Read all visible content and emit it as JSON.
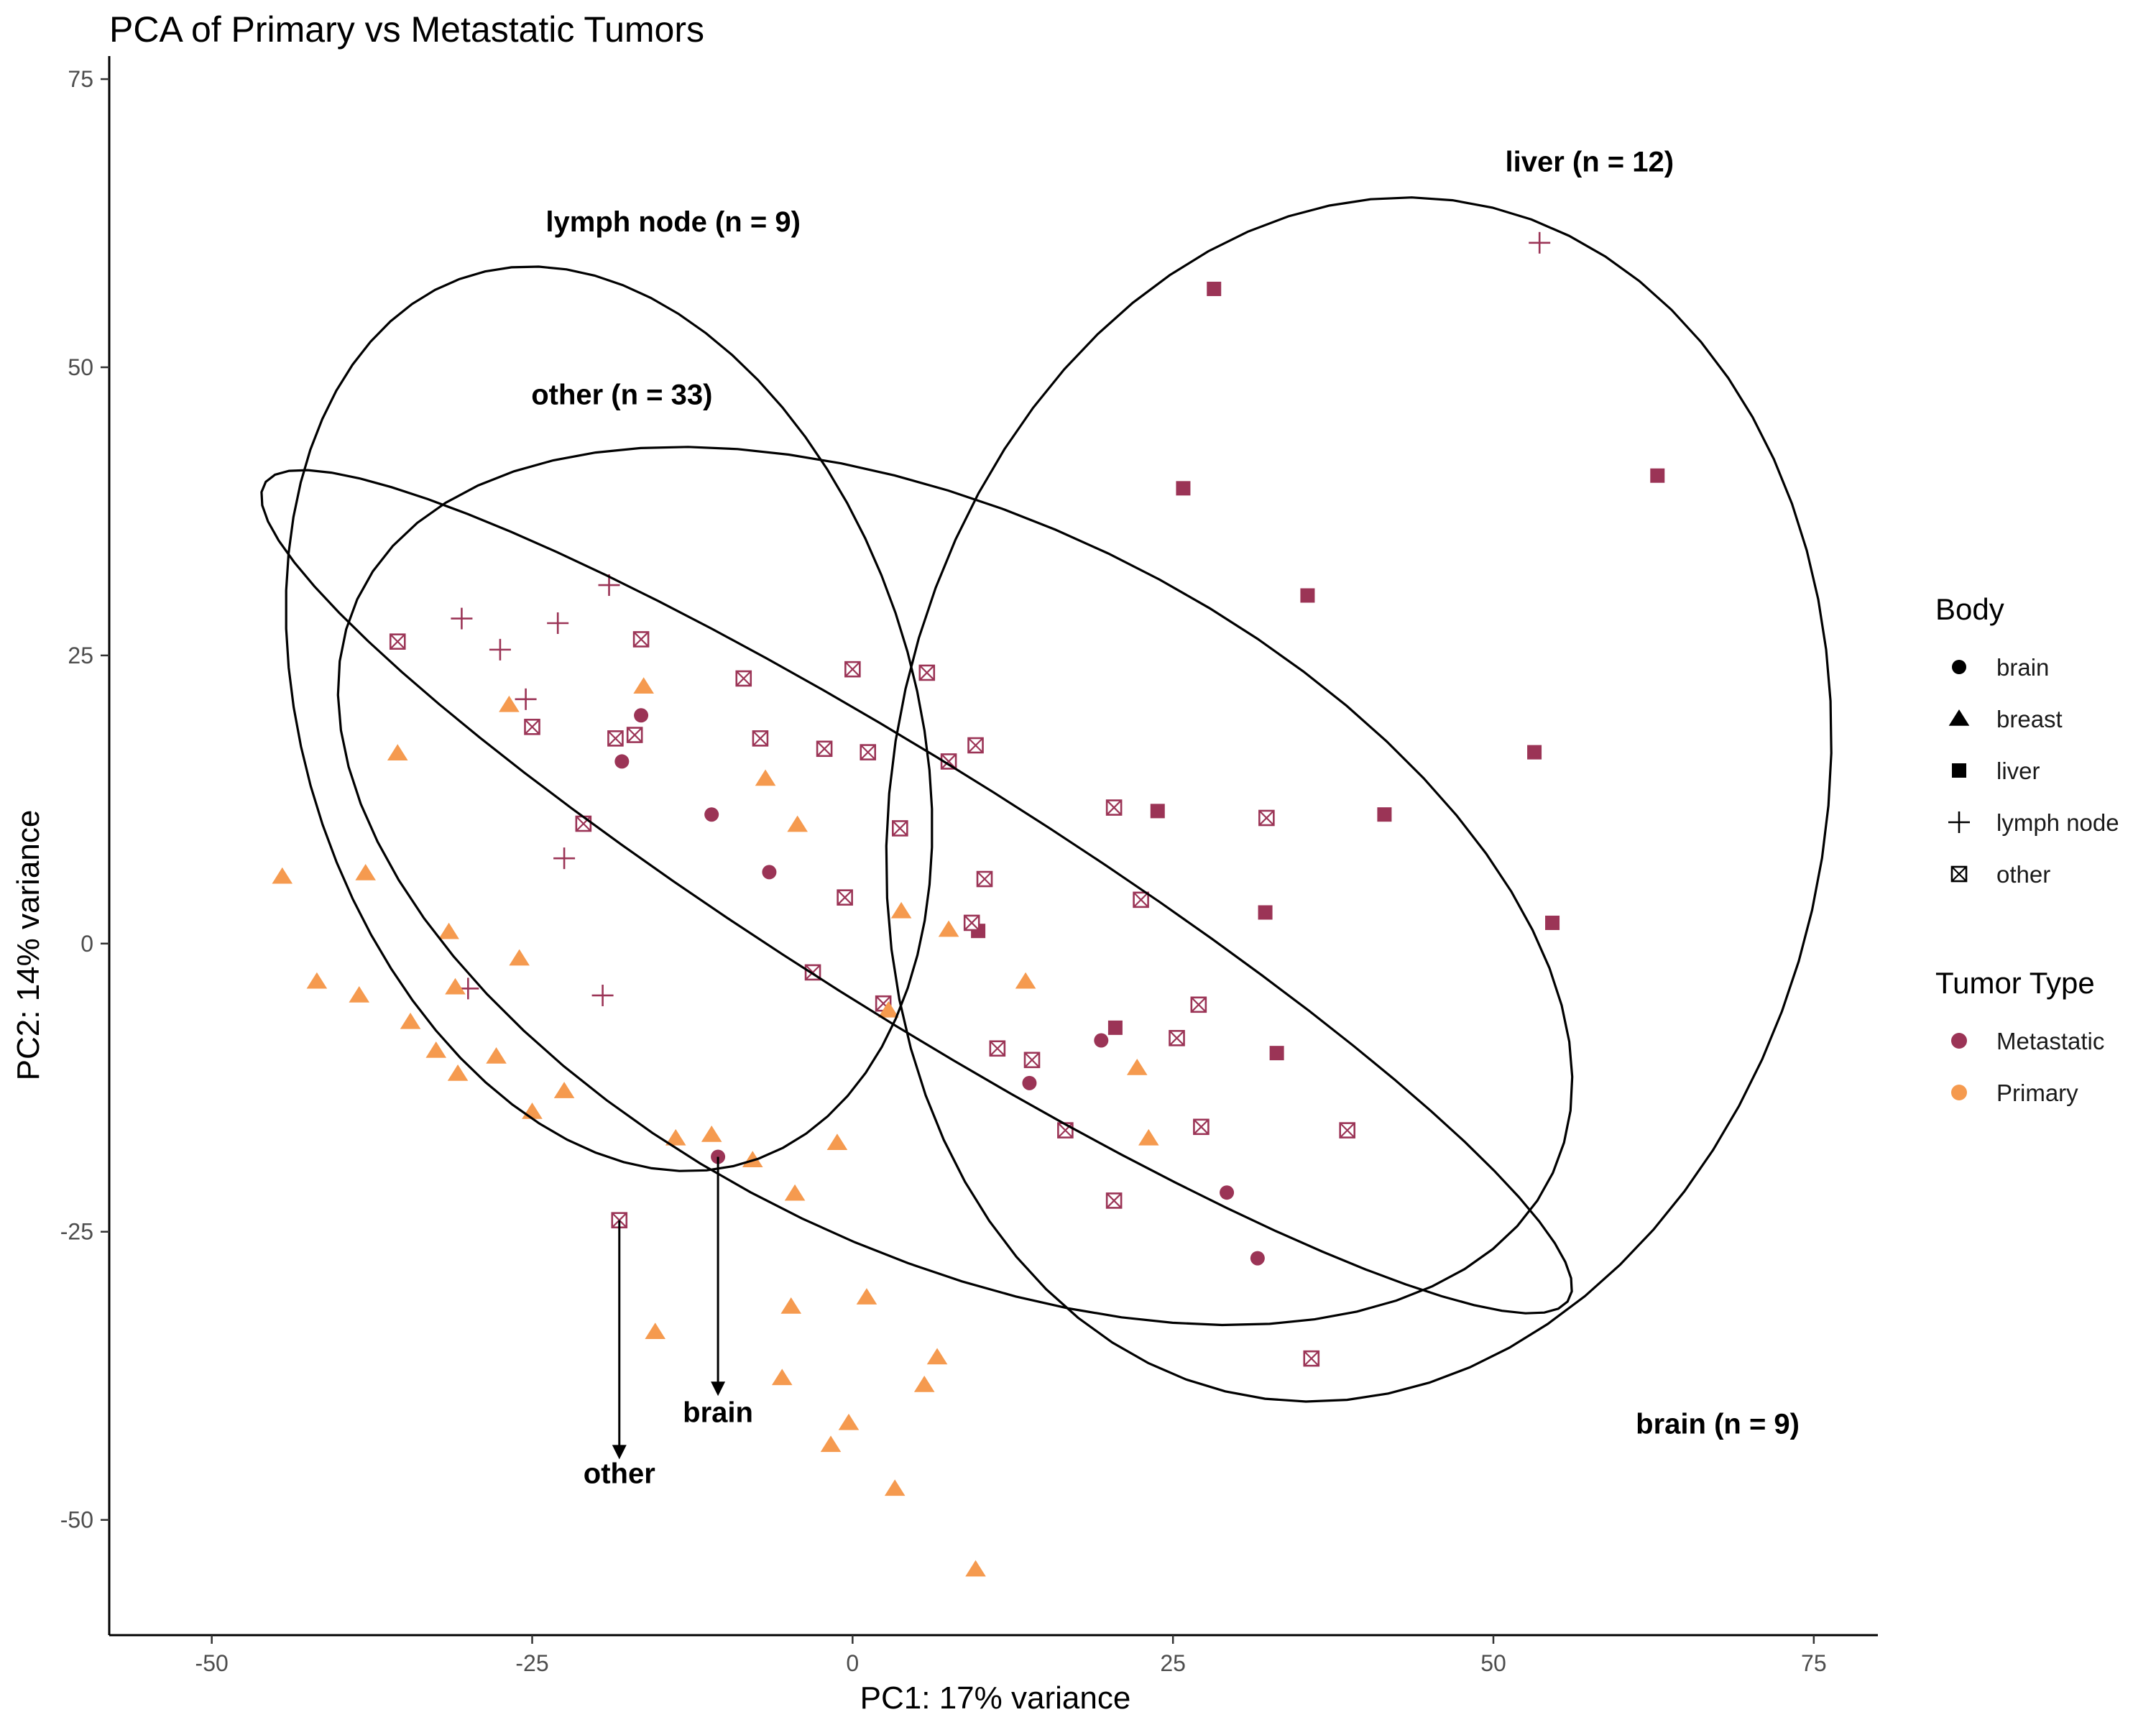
{
  "chart_data": {
    "type": "scatter",
    "title": "PCA of Primary vs Metastatic Tumors",
    "xlabel": "PC1: 17% variance",
    "ylabel": "PC2: 14% variance",
    "xlim": [
      -58,
      80
    ],
    "ylim": [
      -60,
      77
    ],
    "x_ticks": [
      -50,
      -25,
      0,
      25,
      50,
      75
    ],
    "y_ticks": [
      -50,
      -25,
      0,
      25,
      50,
      75
    ],
    "grid": false,
    "colors": {
      "Metastatic": "#9b3456",
      "Primary": "#f59a4f"
    },
    "legend": {
      "position": "right",
      "shape_title": "Body",
      "shapes": [
        "brain",
        "breast",
        "liver",
        "lymph node",
        "other"
      ],
      "color_title": "Tumor Type",
      "colors": [
        "Metastatic",
        "Primary"
      ]
    },
    "ellipses": [
      {
        "label": "liver (n = 12)",
        "center": [
          39.5,
          12.5
        ],
        "axes": [
          36.5,
          52.5
        ],
        "angle": -8,
        "label_at": [
          57.5,
          67
        ]
      },
      {
        "label": "lymph node (n = 9)",
        "center": [
          -19,
          19.5
        ],
        "axes": [
          24,
          40
        ],
        "angle": 14,
        "label_at": [
          -14,
          61.8
        ]
      },
      {
        "label": "other (n = 33)",
        "center": [
          8,
          5
        ],
        "axes": [
          53,
          31
        ],
        "angle": -31,
        "label_at": [
          -18,
          46.8
        ]
      },
      {
        "label": "brain (n = 9)",
        "center": [
          5,
          4.5
        ],
        "axes": [
          62,
          10.5
        ],
        "angle": -35,
        "label_at": [
          67.5,
          -42.5
        ]
      }
    ],
    "annotations": [
      {
        "label": "brain",
        "from": [
          -10.5,
          -18.5
        ],
        "to": [
          -10.5,
          -39
        ],
        "label_at": [
          -10.5,
          -41.5
        ]
      },
      {
        "label": "other",
        "from": [
          -18.2,
          -24
        ],
        "to": [
          -18.2,
          -44.5
        ],
        "label_at": [
          -18.2,
          -46.8
        ]
      }
    ],
    "series": [
      {
        "name": "Metastatic",
        "points": [
          {
            "x": -16.5,
            "y": 19.8,
            "shape": "brain"
          },
          {
            "x": -18,
            "y": 15.8,
            "shape": "brain"
          },
          {
            "x": -11,
            "y": 11.2,
            "shape": "brain"
          },
          {
            "x": -6.5,
            "y": 6.2,
            "shape": "brain"
          },
          {
            "x": -10.5,
            "y": -18.5,
            "shape": "brain"
          },
          {
            "x": 13.8,
            "y": -12.1,
            "shape": "brain"
          },
          {
            "x": 19.4,
            "y": -8.4,
            "shape": "brain"
          },
          {
            "x": 29.2,
            "y": -21.6,
            "shape": "brain"
          },
          {
            "x": 31.6,
            "y": -27.3,
            "shape": "brain"
          },
          {
            "x": 28.2,
            "y": 56.8,
            "shape": "liver"
          },
          {
            "x": 25.8,
            "y": 39.5,
            "shape": "liver"
          },
          {
            "x": 35.5,
            "y": 30.2,
            "shape": "liver"
          },
          {
            "x": 62.8,
            "y": 40.6,
            "shape": "liver"
          },
          {
            "x": 53.2,
            "y": 16.6,
            "shape": "liver"
          },
          {
            "x": 41.5,
            "y": 11.2,
            "shape": "liver"
          },
          {
            "x": 23.8,
            "y": 11.5,
            "shape": "liver"
          },
          {
            "x": 32.2,
            "y": 2.7,
            "shape": "liver"
          },
          {
            "x": 54.6,
            "y": 1.8,
            "shape": "liver"
          },
          {
            "x": 9.8,
            "y": 1.1,
            "shape": "liver"
          },
          {
            "x": 20.5,
            "y": -7.3,
            "shape": "liver"
          },
          {
            "x": 33.1,
            "y": -9.5,
            "shape": "liver"
          },
          {
            "x": 53.6,
            "y": 60.8,
            "shape": "lymph node"
          },
          {
            "x": -19,
            "y": 31.1,
            "shape": "lymph node"
          },
          {
            "x": -30.5,
            "y": 28.2,
            "shape": "lymph node"
          },
          {
            "x": -23,
            "y": 27.8,
            "shape": "lymph node"
          },
          {
            "x": -27.5,
            "y": 25.5,
            "shape": "lymph node"
          },
          {
            "x": -25.5,
            "y": 21.2,
            "shape": "lymph node"
          },
          {
            "x": -22.5,
            "y": 7.4,
            "shape": "lymph node"
          },
          {
            "x": -30,
            "y": -3.9,
            "shape": "lymph node"
          },
          {
            "x": -19.5,
            "y": -4.5,
            "shape": "lymph node"
          },
          {
            "x": -35.5,
            "y": 26.2,
            "shape": "other"
          },
          {
            "x": -16.5,
            "y": 26.4,
            "shape": "other"
          },
          {
            "x": -8.5,
            "y": 23,
            "shape": "other"
          },
          {
            "x": 0,
            "y": 23.8,
            "shape": "other"
          },
          {
            "x": 5.8,
            "y": 23.5,
            "shape": "other"
          },
          {
            "x": -25,
            "y": 18.8,
            "shape": "other"
          },
          {
            "x": -18.5,
            "y": 17.8,
            "shape": "other"
          },
          {
            "x": -17,
            "y": 18.1,
            "shape": "other"
          },
          {
            "x": -7.2,
            "y": 17.8,
            "shape": "other"
          },
          {
            "x": -2.2,
            "y": 16.9,
            "shape": "other"
          },
          {
            "x": 1.2,
            "y": 16.6,
            "shape": "other"
          },
          {
            "x": 7.5,
            "y": 15.8,
            "shape": "other"
          },
          {
            "x": 9.6,
            "y": 17.2,
            "shape": "other"
          },
          {
            "x": -21,
            "y": 10.4,
            "shape": "other"
          },
          {
            "x": 3.7,
            "y": 10,
            "shape": "other"
          },
          {
            "x": 20.4,
            "y": 11.8,
            "shape": "other"
          },
          {
            "x": 32.3,
            "y": 10.9,
            "shape": "other"
          },
          {
            "x": 10.3,
            "y": 5.6,
            "shape": "other"
          },
          {
            "x": -0.6,
            "y": 4,
            "shape": "other"
          },
          {
            "x": 22.5,
            "y": 3.8,
            "shape": "other"
          },
          {
            "x": 9.3,
            "y": 1.8,
            "shape": "other"
          },
          {
            "x": -3.1,
            "y": -2.5,
            "shape": "other"
          },
          {
            "x": 2.4,
            "y": -5.2,
            "shape": "other"
          },
          {
            "x": 27,
            "y": -5.3,
            "shape": "other"
          },
          {
            "x": 25.3,
            "y": -8.2,
            "shape": "other"
          },
          {
            "x": 11.3,
            "y": -9.1,
            "shape": "other"
          },
          {
            "x": 14,
            "y": -10.1,
            "shape": "other"
          },
          {
            "x": 16.6,
            "y": -16.2,
            "shape": "other"
          },
          {
            "x": 27.2,
            "y": -15.9,
            "shape": "other"
          },
          {
            "x": 38.6,
            "y": -16.2,
            "shape": "other"
          },
          {
            "x": 20.4,
            "y": -22.3,
            "shape": "other"
          },
          {
            "x": -18.2,
            "y": -24,
            "shape": "other"
          },
          {
            "x": 35.8,
            "y": -36,
            "shape": "other"
          }
        ]
      },
      {
        "name": "Primary",
        "points": [
          {
            "x": -16.3,
            "y": 22.3,
            "shape": "breast"
          },
          {
            "x": -26.8,
            "y": 20.7,
            "shape": "breast"
          },
          {
            "x": -35.5,
            "y": 16.5,
            "shape": "breast"
          },
          {
            "x": -6.8,
            "y": 14.3,
            "shape": "breast"
          },
          {
            "x": -4.3,
            "y": 10.3,
            "shape": "breast"
          },
          {
            "x": -44.5,
            "y": 5.8,
            "shape": "breast"
          },
          {
            "x": -38,
            "y": 6.1,
            "shape": "breast"
          },
          {
            "x": 3.8,
            "y": 2.8,
            "shape": "breast"
          },
          {
            "x": 7.5,
            "y": 1.2,
            "shape": "breast"
          },
          {
            "x": -31.5,
            "y": 1,
            "shape": "breast"
          },
          {
            "x": -26,
            "y": -1.3,
            "shape": "breast"
          },
          {
            "x": -41.8,
            "y": -3.3,
            "shape": "breast"
          },
          {
            "x": -38.5,
            "y": -4.5,
            "shape": "breast"
          },
          {
            "x": -31,
            "y": -3.8,
            "shape": "breast"
          },
          {
            "x": 13.5,
            "y": -3.3,
            "shape": "breast"
          },
          {
            "x": 2.8,
            "y": -5.8,
            "shape": "breast"
          },
          {
            "x": -34.5,
            "y": -6.8,
            "shape": "breast"
          },
          {
            "x": -32.5,
            "y": -9.3,
            "shape": "breast"
          },
          {
            "x": -27.8,
            "y": -9.8,
            "shape": "breast"
          },
          {
            "x": -30.8,
            "y": -11.3,
            "shape": "breast"
          },
          {
            "x": 22.2,
            "y": -10.8,
            "shape": "breast"
          },
          {
            "x": -22.5,
            "y": -12.8,
            "shape": "breast"
          },
          {
            "x": -25,
            "y": -14.6,
            "shape": "breast"
          },
          {
            "x": -13.8,
            "y": -16.9,
            "shape": "breast"
          },
          {
            "x": -11,
            "y": -16.6,
            "shape": "breast"
          },
          {
            "x": -1.2,
            "y": -17.3,
            "shape": "breast"
          },
          {
            "x": 23.1,
            "y": -16.9,
            "shape": "breast"
          },
          {
            "x": -7.8,
            "y": -18.8,
            "shape": "breast"
          },
          {
            "x": -4.5,
            "y": -21.7,
            "shape": "breast"
          },
          {
            "x": 1.1,
            "y": -30.7,
            "shape": "breast"
          },
          {
            "x": -4.8,
            "y": -31.5,
            "shape": "breast"
          },
          {
            "x": -15.4,
            "y": -33.7,
            "shape": "breast"
          },
          {
            "x": 6.6,
            "y": -35.9,
            "shape": "breast"
          },
          {
            "x": -5.5,
            "y": -37.7,
            "shape": "breast"
          },
          {
            "x": 5.6,
            "y": -38.3,
            "shape": "breast"
          },
          {
            "x": -0.3,
            "y": -41.6,
            "shape": "breast"
          },
          {
            "x": -1.7,
            "y": -43.5,
            "shape": "breast"
          },
          {
            "x": 3.3,
            "y": -47.3,
            "shape": "breast"
          },
          {
            "x": 9.6,
            "y": -54.3,
            "shape": "breast"
          }
        ]
      }
    ]
  }
}
